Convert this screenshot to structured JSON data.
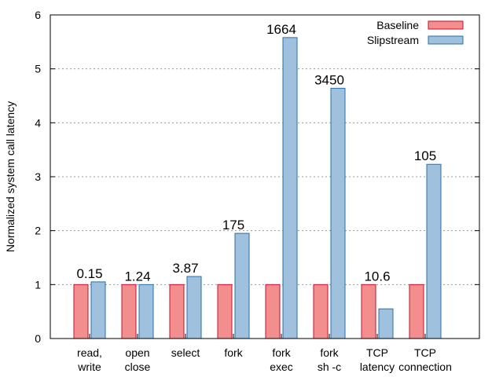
{
  "chart_data": {
    "type": "bar",
    "title": "",
    "xlabel": "",
    "ylabel": "Normalized system call latency",
    "ylim": [
      0,
      6
    ],
    "yticks": [
      0,
      1,
      2,
      3,
      4,
      5,
      6
    ],
    "grid": "horizontal dotted",
    "legend_position": "top-right",
    "categories": [
      [
        "read,",
        "write"
      ],
      [
        "open",
        "close"
      ],
      [
        "select"
      ],
      [
        "fork"
      ],
      [
        "fork",
        "exec"
      ],
      [
        "fork",
        "sh -c"
      ],
      [
        "TCP",
        "latency"
      ],
      [
        "TCP",
        "connection"
      ]
    ],
    "series": [
      {
        "name": "Baseline",
        "color": "#f28e8e",
        "stroke": "#c8102e",
        "values": [
          1,
          1,
          1,
          1,
          1,
          1,
          1,
          1
        ]
      },
      {
        "name": "Slipstream",
        "color": "#9fc1dd",
        "stroke": "#2a6fa8",
        "values": [
          1.05,
          1.0,
          1.15,
          1.95,
          5.58,
          4.64,
          0.55,
          3.23
        ]
      }
    ],
    "annotations": [
      "0.15",
      "1.24",
      "3.87",
      "175",
      "1664",
      "3450",
      "10.6",
      "105"
    ]
  }
}
